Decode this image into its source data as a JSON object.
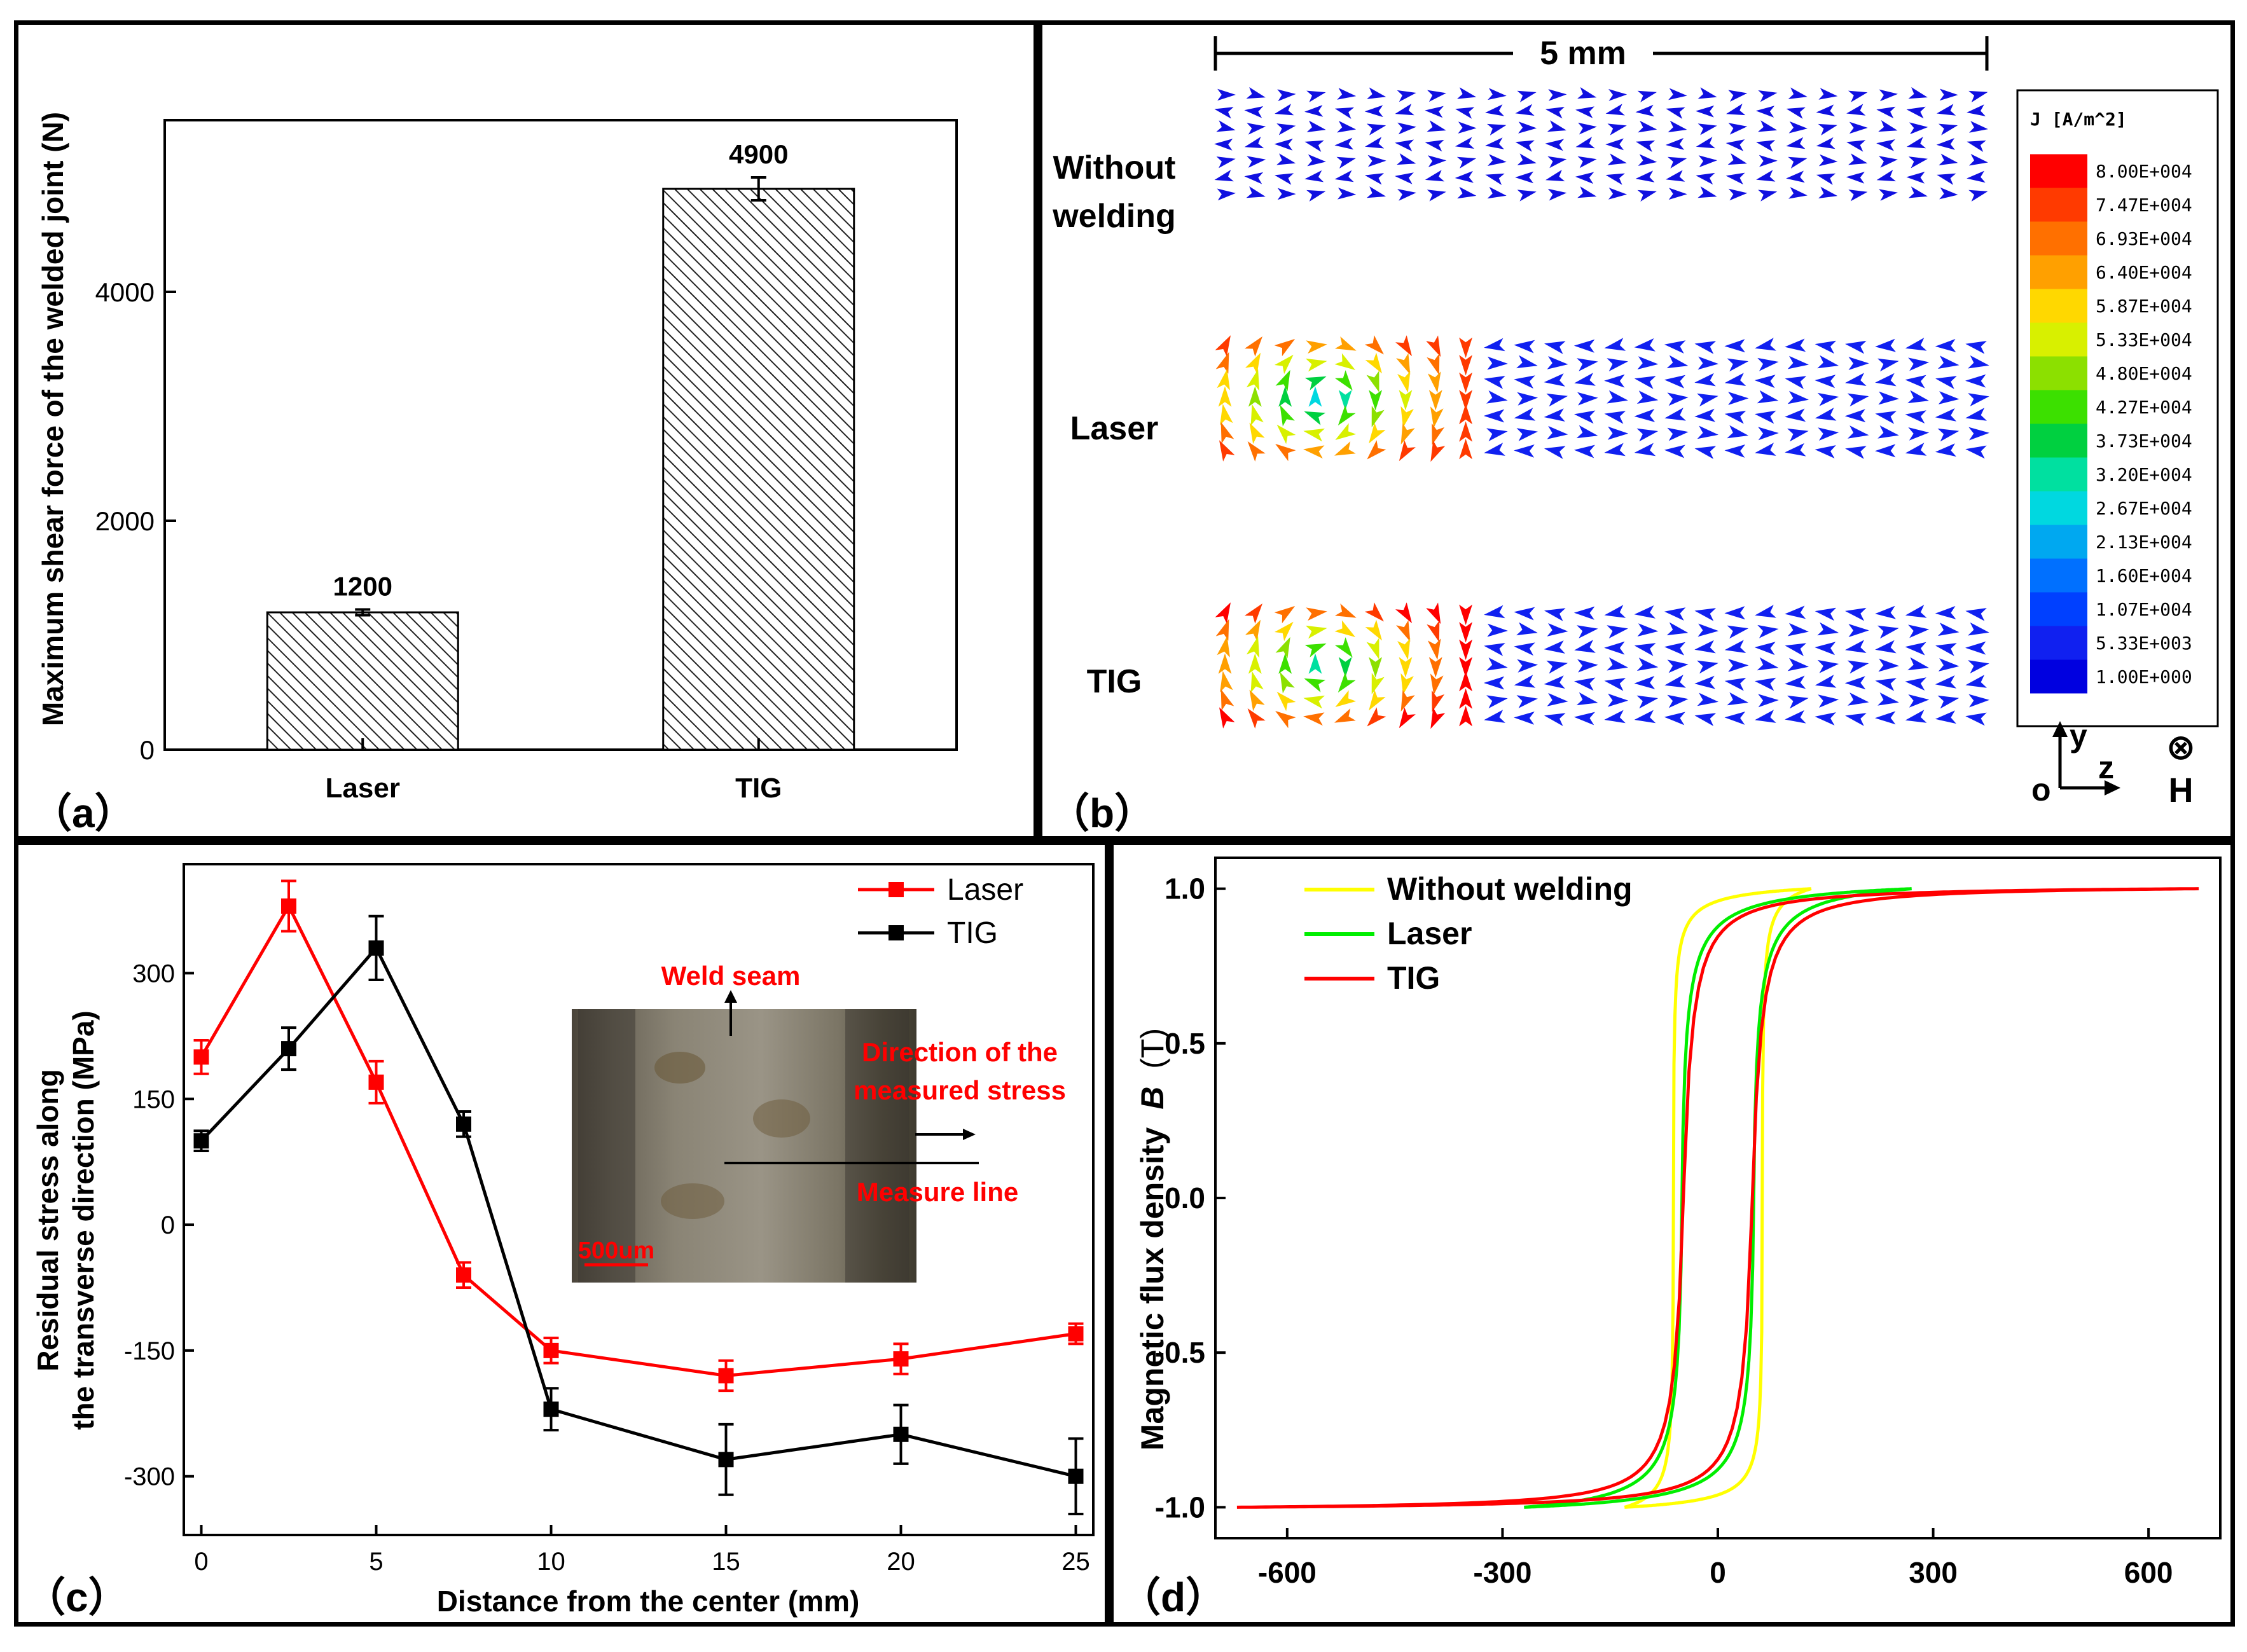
{
  "panel_labels": {
    "a": "（a）",
    "b": "（b）",
    "c": "（c）",
    "d": "（d）"
  },
  "chart_data": [
    {
      "id": "a",
      "type": "bar",
      "title": "",
      "xlabel": "",
      "ylabel": "Maximum shear force of the welded joint (N)",
      "categories": [
        "Laser",
        "TIG"
      ],
      "values": [
        1200,
        4900
      ],
      "errors": [
        25,
        100
      ],
      "data_labels": [
        "1200",
        "4900"
      ],
      "ylim": [
        0,
        5500
      ],
      "yticks": [
        0,
        2000,
        4000
      ],
      "ytick_labels": [
        "0",
        "2000",
        "4000"
      ],
      "fill": "diagonal hatch"
    },
    {
      "id": "b",
      "type": "other",
      "description": "current density vector field",
      "scale_label": "5 mm",
      "row_labels": [
        [
          "Without",
          "welding"
        ],
        [
          "Laser"
        ],
        [
          "TIG"
        ]
      ],
      "legend_title": "J [A/m^2]",
      "legend_values": [
        "8.00E+004",
        "7.47E+004",
        "6.93E+004",
        "6.40E+004",
        "5.87E+004",
        "5.33E+004",
        "4.80E+004",
        "4.27E+004",
        "3.73E+004",
        "3.20E+004",
        "2.67E+004",
        "2.13E+004",
        "1.60E+004",
        "1.07E+004",
        "5.33E+003",
        "1.00E+000"
      ],
      "legend_colors": [
        "#ff0000",
        "#ff3a00",
        "#ff7000",
        "#ffa000",
        "#ffd800",
        "#d8f000",
        "#8ce000",
        "#3ce000",
        "#00d040",
        "#00e0a0",
        "#00d8e0",
        "#00a8f0",
        "#0070ff",
        "#0040ff",
        "#1020f0",
        "#0000e0"
      ],
      "axes": {
        "origin": "o",
        "y": "y",
        "z": "z",
        "field_symbol": "⊗",
        "field_label": "H"
      }
    },
    {
      "id": "c",
      "type": "line",
      "xlabel": "Distance from the center (mm)",
      "ylabel": [
        "Residual stress along",
        "the transverse direction (MPa)"
      ],
      "x": [
        0,
        2.5,
        5,
        7.5,
        10,
        15,
        20,
        25
      ],
      "xlim": [
        -0.5,
        25.5
      ],
      "ylim": [
        -370,
        430
      ],
      "xticks": [
        0,
        5,
        10,
        15,
        20,
        25
      ],
      "xtick_labels": [
        "0",
        "5",
        "10",
        "15",
        "20",
        "25"
      ],
      "yticks": [
        -300,
        -150,
        0,
        150,
        300
      ],
      "ytick_labels": [
        "-300",
        "-150",
        "0",
        "150",
        "300"
      ],
      "series": [
        {
          "name": "Laser",
          "color": "#ff0000",
          "values": [
            200,
            380,
            170,
            -60,
            -150,
            -180,
            -160,
            -130
          ],
          "errors": [
            20,
            30,
            25,
            15,
            15,
            18,
            18,
            12
          ]
        },
        {
          "name": "TIG",
          "color": "#000000",
          "values": [
            100,
            210,
            330,
            120,
            -220,
            -280,
            -250,
            -300
          ],
          "errors": [
            12,
            25,
            38,
            15,
            25,
            42,
            35,
            45
          ]
        }
      ],
      "inset": {
        "weld_seam": "Weld seam",
        "direction": [
          "Direction of the",
          "measured stress"
        ],
        "measure_line": "Measure line",
        "scale_bar": "500um"
      }
    },
    {
      "id": "d",
      "type": "line",
      "xlabel": "",
      "ylabel": "Magnetic flux density",
      "ylabel_symbol": "B",
      "ylabel_unit": "(T)",
      "xlim": [
        -700,
        700
      ],
      "ylim": [
        -1.1,
        1.1
      ],
      "xticks": [
        -600,
        -300,
        0,
        300,
        600
      ],
      "xtick_labels": [
        "-600",
        "-300",
        "0",
        "300",
        "600"
      ],
      "yticks": [
        -1.0,
        -0.5,
        0.0,
        0.5,
        1.0
      ],
      "ytick_labels": [
        "-1.0",
        "-0.5",
        "0.0",
        "0.5",
        "1.0"
      ],
      "series": [
        {
          "name": "Without welding",
          "color": "#ffff00",
          "Hmax": 130,
          "Hc": 62,
          "a": 1.4,
          "n": 1.5
        },
        {
          "name": "Laser",
          "color": "#00ee00",
          "Hmax": 270,
          "Hc": 50,
          "a": 6.5,
          "n": 1.2
        },
        {
          "name": "TIG",
          "color": "#ff0000",
          "Hmax": 670,
          "Hc": 48,
          "a": 11,
          "n": 0.9
        }
      ]
    }
  ]
}
